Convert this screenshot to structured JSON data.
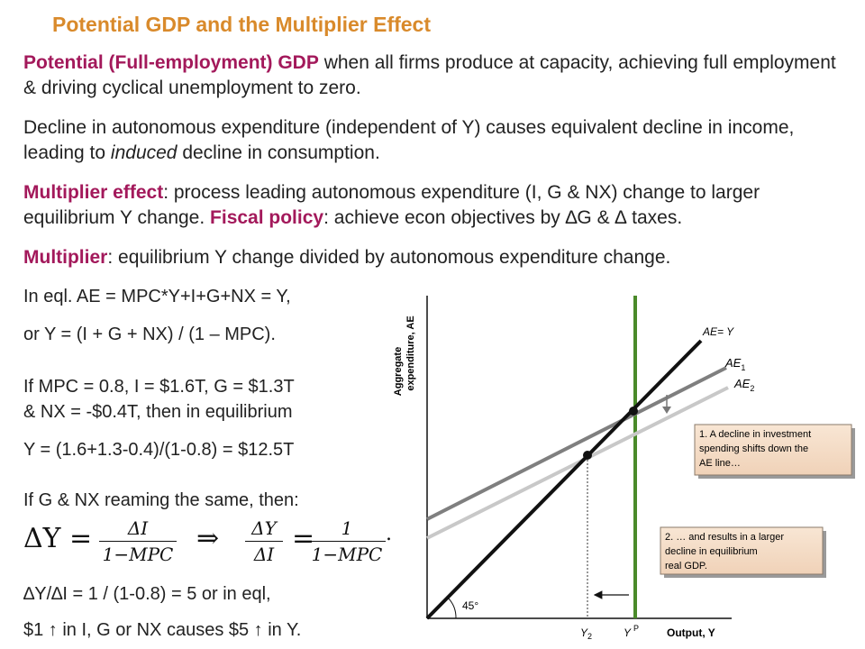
{
  "title": "Potential GDP and the Multiplier Effect",
  "p1": {
    "hl": "Potential (Full-employment) GDP",
    "rest": " when all firms produce at capacity, achieving full employment & driving cyclical unemployment to zero."
  },
  "p2": {
    "a": "Decline in autonomous expenditure (independent of Y) causes equivalent decline in income, leading to ",
    "em": "induced",
    "b": " decline in consumption."
  },
  "p3": {
    "hl1": "Multiplier effect",
    "a": ": process leading autonomous expenditure (I, G & NX) change to larger equilibrium Y change. ",
    "hl2": "Fiscal policy",
    "b": ": achieve econ objectives by ∆G & ∆ taxes."
  },
  "p4": {
    "hl": "Multiplier",
    "rest": ": equilibrium Y change divided by autonomous expenditure change."
  },
  "left": {
    "l1": "In eql.  AE = MPC*Y+I+G+NX = Y,",
    "l2": "or    Y = (I + G + NX) / (1 – MPC).",
    "l3": "If MPC = 0.8, I = $1.6T, G = $1.3T",
    "l4": "& NX = -$0.4T, then in equilibrium",
    "l5": "Y = (1.6+1.3-0.4)/(1-0.8) = $12.5T",
    "l6": "If G & NX reaming the same, then:",
    "eq": {
      "lhs": "ΔY =",
      "f1_num": "ΔI",
      "f1_den": "1−MPC",
      "arrow": "⇒",
      "f2_num": "ΔY",
      "f2_den": "ΔI",
      "eqsign": "=",
      "f3_num": "1",
      "f3_den": "1−MPC",
      "dot": "."
    },
    "l7": "∆Y/∆I = 1 / (1-0.8) = 5    or    in eql,",
    "l8": "$1 ↑ in I, G or NX causes $5 ↑ in Y."
  },
  "diagram": {
    "y_axis_label_1": "Aggregate",
    "y_axis_label_2": "expenditure, AE",
    "x_axis_label": "Output, Y",
    "line_ae_y": "AE= Y",
    "line_ae1": "AE",
    "line_ae1_sub": "1",
    "line_ae2": "AE",
    "line_ae2_sub": "2",
    "angle": "45°",
    "tick_y2": "Y",
    "tick_y2_sub": "2",
    "tick_yp": "Y",
    "tick_yp_sup": "P",
    "callout1": [
      "1. A decline in investment",
      "spending shifts down the",
      "AE line…"
    ],
    "callout2": [
      "2. … and results in a larger",
      "decline in equilibrium",
      "real GDP."
    ],
    "colors": {
      "potential_line": "#4a8a2a",
      "ae1": "#7f7f7f",
      "ae2": "#c8c8c8",
      "callout_bg": "#f4dcc6",
      "title": "#d98a2b",
      "highlight": "#a3195b"
    }
  }
}
